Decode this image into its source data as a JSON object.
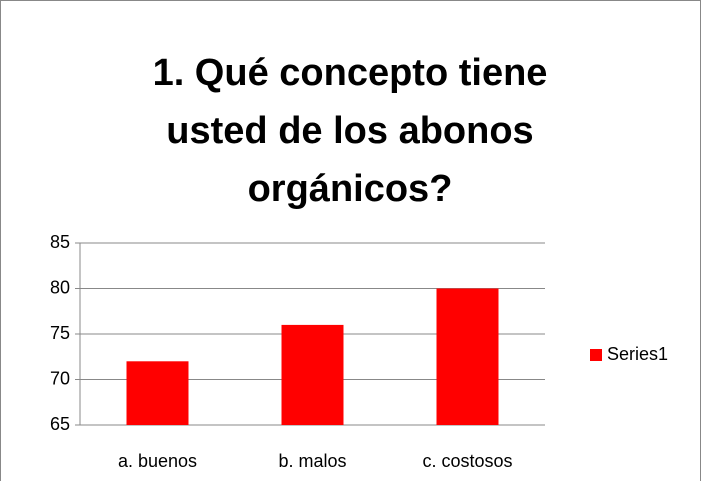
{
  "chart_data": {
    "type": "bar",
    "title": "1. Qué concepto tiene usted de los abonos orgánicos?",
    "categories": [
      "a. buenos",
      "b. malos",
      "c. costosos"
    ],
    "series": [
      {
        "name": "Series1",
        "color": "#ff0000",
        "values": [
          72,
          76,
          80
        ]
      }
    ],
    "ylim": [
      65,
      85
    ],
    "yticks": [
      65,
      70,
      75,
      80,
      85
    ],
    "grid": true,
    "legend": "right"
  }
}
